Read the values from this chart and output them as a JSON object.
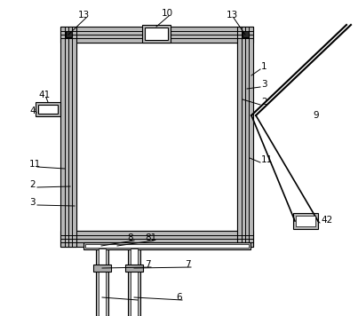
{
  "bg_color": "#ffffff",
  "gray_fill": "#b8b8b8",
  "white_fill": "#ffffff",
  "black_fill": "#2a2a2a",
  "line_color": "#000000",
  "fig_width": 4.03,
  "fig_height": 3.56,
  "dpi": 100,
  "OL": 68,
  "OT": 30,
  "OR": 285,
  "OB": 278,
  "wall": 18
}
